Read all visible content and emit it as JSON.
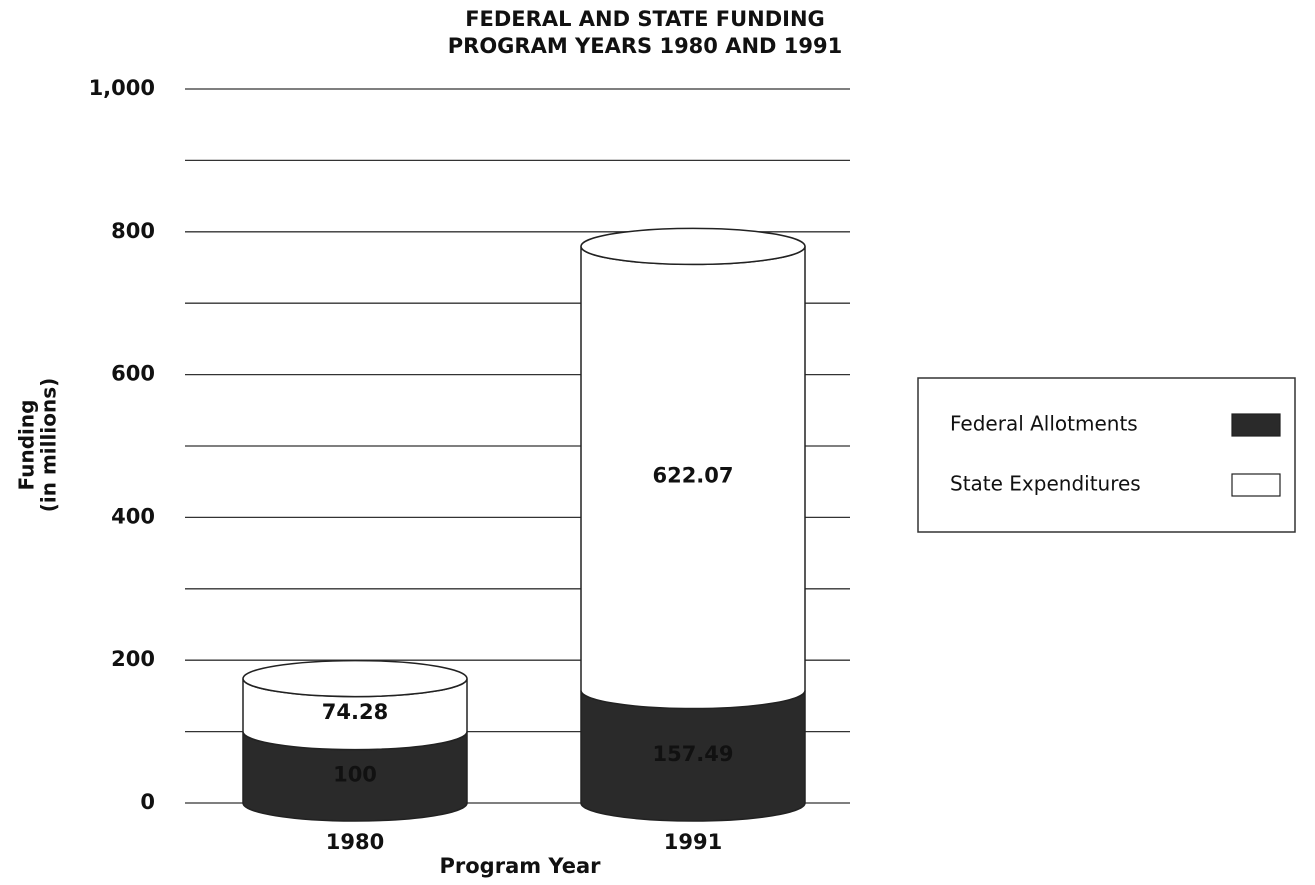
{
  "chart_data": {
    "type": "stacked-cylinder",
    "title": [
      "FEDERAL AND STATE FUNDING",
      "PROGRAM YEARS 1980 AND 1991"
    ],
    "ylabel": [
      "Funding",
      "(in millions)"
    ],
    "xlabel": "Program Year",
    "categories": [
      "1980",
      "1991"
    ],
    "series": [
      {
        "name": "Federal Allotments",
        "color": "#2a2a2a",
        "values": [
          100,
          157.49
        ]
      },
      {
        "name": "State Expenditures",
        "color": "#ffffff",
        "values": [
          74.28,
          622.07
        ]
      }
    ],
    "ylim": [
      0,
      1000
    ],
    "yticks": [
      0,
      200,
      400,
      600,
      800,
      {
        "value": 1000,
        "label": "1,000"
      }
    ],
    "minor_yticks": [
      100,
      300,
      500,
      700,
      900
    ],
    "grid": true,
    "legend": "right"
  }
}
